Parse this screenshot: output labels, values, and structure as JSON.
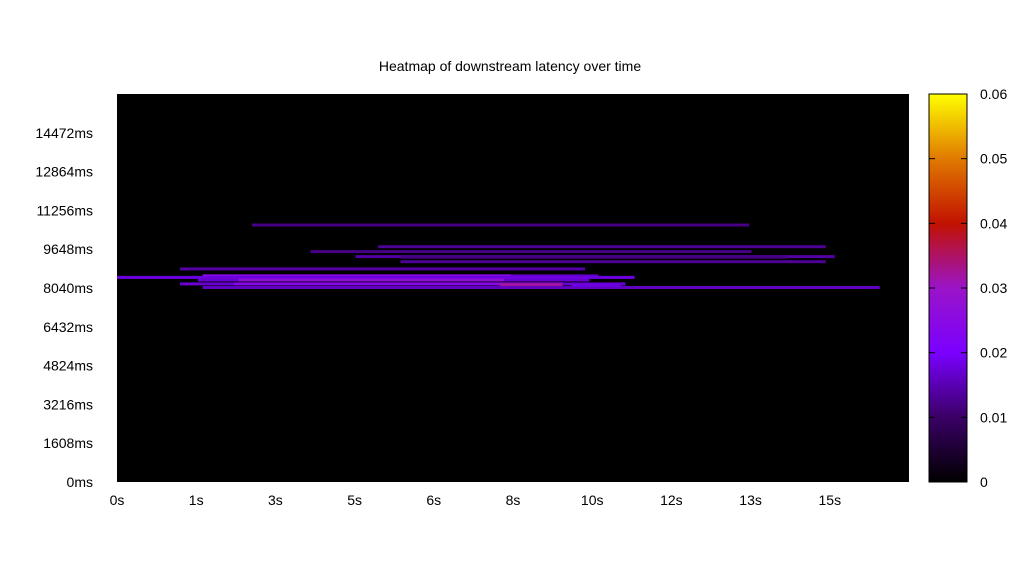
{
  "chart_data": {
    "type": "heatmap",
    "title": "Heatmap of downstream latency over time",
    "x_ticks": [
      "0s",
      "1s",
      "3s",
      "5s",
      "6s",
      "8s",
      "10s",
      "12s",
      "13s",
      "15s"
    ],
    "y_ticks": [
      "0ms",
      "1608ms",
      "3216ms",
      "4824ms",
      "6432ms",
      "8040ms",
      "9648ms",
      "11256ms",
      "12864ms",
      "14472ms"
    ],
    "x_range_s": [
      0,
      17.6
    ],
    "y_range_ms": [
      0,
      16080
    ],
    "colorbar": {
      "range": [
        0,
        0.06
      ],
      "ticks": [
        "0",
        "0.01",
        "0.02",
        "0.03",
        "0.04",
        "0.05",
        "0.06"
      ],
      "stops": [
        "#000000",
        "#3a0066",
        "#7a00ff",
        "#9a14c8",
        "#c21200",
        "#e07a00",
        "#ffff00"
      ]
    },
    "plot_background": "#000000",
    "segments": [
      {
        "x0": 3.0,
        "x1": 14.05,
        "y": 10650,
        "v": 0.012
      },
      {
        "x0": 5.8,
        "x1": 15.75,
        "y": 9750,
        "v": 0.013
      },
      {
        "x0": 4.3,
        "x1": 14.1,
        "y": 9550,
        "v": 0.012
      },
      {
        "x0": 5.3,
        "x1": 15.95,
        "y": 9340,
        "v": 0.014
      },
      {
        "x0": 6.3,
        "x1": 14.9,
        "y": 9320,
        "v": 0.012
      },
      {
        "x0": 6.3,
        "x1": 15.75,
        "y": 9130,
        "v": 0.013
      },
      {
        "x0": 1.4,
        "x1": 10.4,
        "y": 8830,
        "v": 0.014
      },
      {
        "x0": 1.9,
        "x1": 10.7,
        "y": 8540,
        "v": 0.016
      },
      {
        "x0": 1.9,
        "x1": 8.75,
        "y": 8540,
        "v": 0.025
      },
      {
        "x0": 0.0,
        "x1": 11.5,
        "y": 8480,
        "v": 0.018
      },
      {
        "x0": 1.8,
        "x1": 10.5,
        "y": 8370,
        "v": 0.017
      },
      {
        "x0": 2.7,
        "x1": 8.6,
        "y": 8370,
        "v": 0.027
      },
      {
        "x0": 1.4,
        "x1": 11.3,
        "y": 8210,
        "v": 0.017
      },
      {
        "x0": 2.6,
        "x1": 9.9,
        "y": 8210,
        "v": 0.024
      },
      {
        "x0": 8.5,
        "x1": 9.9,
        "y": 8180,
        "v": 0.032
      },
      {
        "x0": 1.9,
        "x1": 16.95,
        "y": 8060,
        "v": 0.016
      },
      {
        "x0": 10.1,
        "x1": 11.2,
        "y": 8150,
        "v": 0.018
      }
    ]
  }
}
